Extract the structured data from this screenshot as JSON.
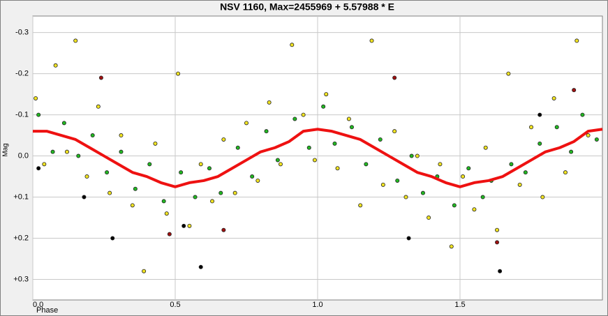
{
  "chart_data": {
    "type": "scatter",
    "title": "NSV 1160, Max=2455969 + 5.57988 * E",
    "x_label": "Phase",
    "y_label": "Mag",
    "xlim": [
      0,
      2
    ],
    "ylim": [
      -0.34,
      0.35
    ],
    "y_reversed": true,
    "grid": true,
    "xticks": [
      {
        "value": 0,
        "label": "0.0"
      },
      0.5,
      {
        "value": 1,
        "label": "1.0"
      },
      1.5
    ],
    "yticks": [
      -0.3,
      -0.2,
      -0.1,
      {
        "value": 0,
        "label": "0.0"
      },
      {
        "value": 0.1,
        "label": "+0.1"
      },
      {
        "value": 0.2,
        "label": "+0.2"
      },
      {
        "value": 0.3,
        "label": "+0.3"
      }
    ],
    "series": [
      {
        "color": "#f2e422",
        "x": [
          0.01,
          0.04,
          0.08,
          0.12,
          0.15,
          0.19,
          0.23,
          0.27,
          0.31,
          0.35,
          0.39,
          0.43,
          0.47,
          0.51,
          0.55,
          0.59,
          0.63,
          0.67,
          0.71,
          0.75,
          0.79,
          0.83,
          0.87,
          0.91,
          0.95,
          0.99,
          1.03,
          1.07,
          1.11,
          1.15,
          1.19,
          1.23,
          1.27,
          1.31,
          1.35,
          1.39,
          1.43,
          1.47,
          1.51,
          1.55,
          1.59,
          1.63,
          1.67,
          1.71,
          1.75,
          1.79,
          1.83,
          1.87,
          1.91,
          1.95
        ],
        "values": [
          -0.14,
          0.02,
          -0.22,
          -0.01,
          -0.28,
          0.05,
          -0.12,
          0.09,
          -0.05,
          0.12,
          0.28,
          -0.03,
          0.14,
          -0.2,
          0.17,
          0.02,
          0.11,
          -0.04,
          0.09,
          -0.08,
          0.06,
          -0.13,
          0.02,
          -0.27,
          -0.1,
          0.01,
          -0.15,
          0.03,
          -0.09,
          0.12,
          -0.28,
          0.07,
          -0.06,
          0.1,
          0.0,
          0.15,
          0.02,
          0.22,
          0.05,
          0.13,
          -0.02,
          0.18,
          -0.2,
          0.07,
          -0.07,
          0.1,
          -0.14,
          0.04,
          -0.28,
          -0.05
        ]
      },
      {
        "color": "#22b822",
        "x": [
          0.02,
          0.07,
          0.11,
          0.16,
          0.21,
          0.26,
          0.31,
          0.36,
          0.41,
          0.46,
          0.52,
          0.57,
          0.62,
          0.66,
          0.72,
          0.77,
          0.82,
          0.86,
          0.92,
          0.97,
          1.02,
          1.06,
          1.12,
          1.17,
          1.22,
          1.28,
          1.33,
          1.37,
          1.42,
          1.48,
          1.53,
          1.58,
          1.61,
          1.68,
          1.73,
          1.78,
          1.84,
          1.89,
          1.93,
          1.98
        ],
        "values": [
          -0.1,
          -0.01,
          -0.08,
          0.0,
          -0.05,
          0.04,
          -0.01,
          0.08,
          0.02,
          0.11,
          0.04,
          0.1,
          0.03,
          0.09,
          -0.02,
          0.05,
          -0.06,
          0.01,
          -0.09,
          -0.02,
          -0.12,
          -0.03,
          -0.07,
          0.02,
          -0.04,
          0.06,
          0.0,
          0.09,
          0.05,
          0.12,
          0.03,
          0.1,
          0.06,
          0.02,
          0.04,
          -0.03,
          -0.07,
          -0.01,
          -0.1,
          -0.04
        ]
      },
      {
        "color": "#000000",
        "x": [
          0.02,
          0.18,
          0.28,
          0.53,
          0.59,
          1.32,
          1.64,
          1.78
        ],
        "values": [
          0.03,
          0.1,
          0.2,
          0.17,
          0.27,
          0.2,
          0.28,
          -0.1
        ]
      },
      {
        "color": "#a01010",
        "x": [
          0.24,
          0.48,
          0.67,
          1.27,
          1.63,
          1.9
        ],
        "values": [
          -0.19,
          0.19,
          0.18,
          -0.19,
          0.21,
          -0.16
        ]
      }
    ],
    "fit": {
      "color": "#ee1111",
      "x": [
        0,
        0.05,
        0.1,
        0.15,
        0.2,
        0.25,
        0.3,
        0.35,
        0.4,
        0.45,
        0.5,
        0.55,
        0.6,
        0.65,
        0.7,
        0.75,
        0.8,
        0.85,
        0.9,
        0.95,
        1.0,
        1.05,
        1.1,
        1.15,
        1.2,
        1.25,
        1.3,
        1.35,
        1.4,
        1.45,
        1.5,
        1.55,
        1.6,
        1.65,
        1.7,
        1.75,
        1.8,
        1.85,
        1.9,
        1.95,
        2.0
      ],
      "values": [
        -0.06,
        -0.06,
        -0.05,
        -0.04,
        -0.02,
        0.0,
        0.02,
        0.04,
        0.05,
        0.065,
        0.075,
        0.065,
        0.06,
        0.05,
        0.03,
        0.01,
        -0.01,
        -0.02,
        -0.035,
        -0.06,
        -0.065,
        -0.06,
        -0.05,
        -0.04,
        -0.02,
        0.0,
        0.02,
        0.04,
        0.05,
        0.065,
        0.075,
        0.065,
        0.06,
        0.05,
        0.03,
        0.01,
        -0.01,
        -0.02,
        -0.035,
        -0.06,
        -0.065
      ]
    }
  }
}
